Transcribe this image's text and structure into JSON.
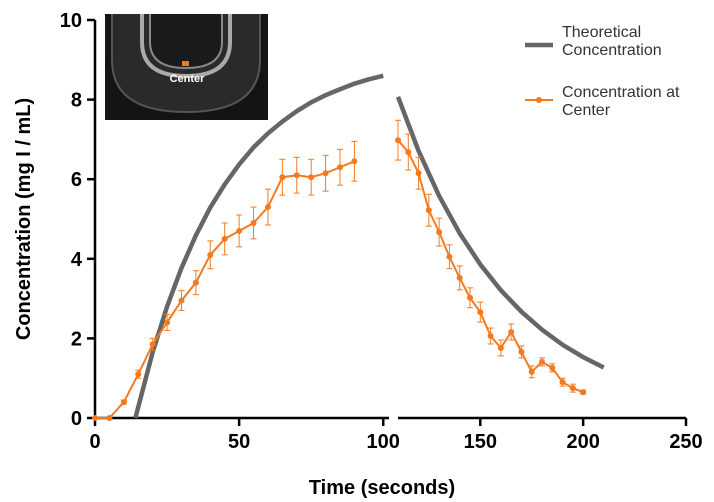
{
  "chart_data": {
    "type": "line",
    "xlabel": "Time (seconds)",
    "ylabel": "Concentration (mg I / mL)",
    "x_segments": [
      {
        "xlim": [
          0,
          102
        ],
        "xticks": [
          0,
          50,
          100
        ]
      },
      {
        "xlim": [
          110,
          250
        ],
        "xticks": [
          150,
          200,
          250
        ]
      }
    ],
    "ylim": [
      0,
      10
    ],
    "yticks": [
      0,
      2,
      4,
      6,
      8,
      10
    ],
    "series": [
      {
        "name": "Theoretical Concentration",
        "color": "#666666",
        "marker": false,
        "x": [
          14,
          20,
          25,
          30,
          35,
          40,
          45,
          50,
          55,
          60,
          65,
          70,
          75,
          80,
          85,
          90,
          95,
          100,
          105,
          110,
          120,
          130,
          140,
          150,
          160,
          170,
          180,
          190,
          200,
          210
        ],
        "values": [
          0,
          1.65,
          2.8,
          3.77,
          4.59,
          5.29,
          5.87,
          6.37,
          6.8,
          7.15,
          7.45,
          7.71,
          7.93,
          8.11,
          8.26,
          8.4,
          8.51,
          8.6,
          null,
          8.07,
          6.71,
          5.58,
          4.64,
          3.86,
          3.21,
          2.67,
          2.22,
          1.84,
          1.53,
          1.27
        ]
      },
      {
        "name": "Concentration at Center",
        "color": "#f47a20",
        "marker": true,
        "x": [
          0,
          5,
          10,
          15,
          20,
          25,
          30,
          35,
          40,
          45,
          50,
          55,
          60,
          65,
          70,
          75,
          80,
          85,
          90,
          100,
          110,
          115,
          120,
          125,
          130,
          135,
          140,
          145,
          150,
          155,
          160,
          165,
          170,
          175,
          180,
          185,
          190,
          195,
          200
        ],
        "values": [
          0,
          0,
          0.4,
          1.1,
          1.85,
          2.4,
          2.95,
          3.4,
          4.1,
          4.5,
          4.7,
          4.9,
          5.3,
          6.05,
          6.1,
          6.05,
          6.15,
          6.3,
          6.45,
          null,
          6.98,
          6.68,
          6.15,
          5.22,
          4.67,
          4.05,
          3.52,
          3.02,
          2.66,
          2.06,
          1.76,
          2.16,
          1.66,
          1.16,
          1.41,
          1.26,
          0.9,
          0.75,
          0.65
        ],
        "errors": [
          0,
          0,
          0.05,
          0.1,
          0.15,
          0.2,
          0.25,
          0.3,
          0.35,
          0.4,
          0.4,
          0.4,
          0.45,
          0.45,
          0.45,
          0.45,
          0.45,
          0.45,
          0.5,
          null,
          0.5,
          0.45,
          0.4,
          0.4,
          0.35,
          0.3,
          0.3,
          0.25,
          0.25,
          0.2,
          0.2,
          0.2,
          0.15,
          0.15,
          0.1,
          0.1,
          0.1,
          0.1,
          0.05
        ]
      }
    ]
  },
  "inset": {
    "label": "Center"
  }
}
